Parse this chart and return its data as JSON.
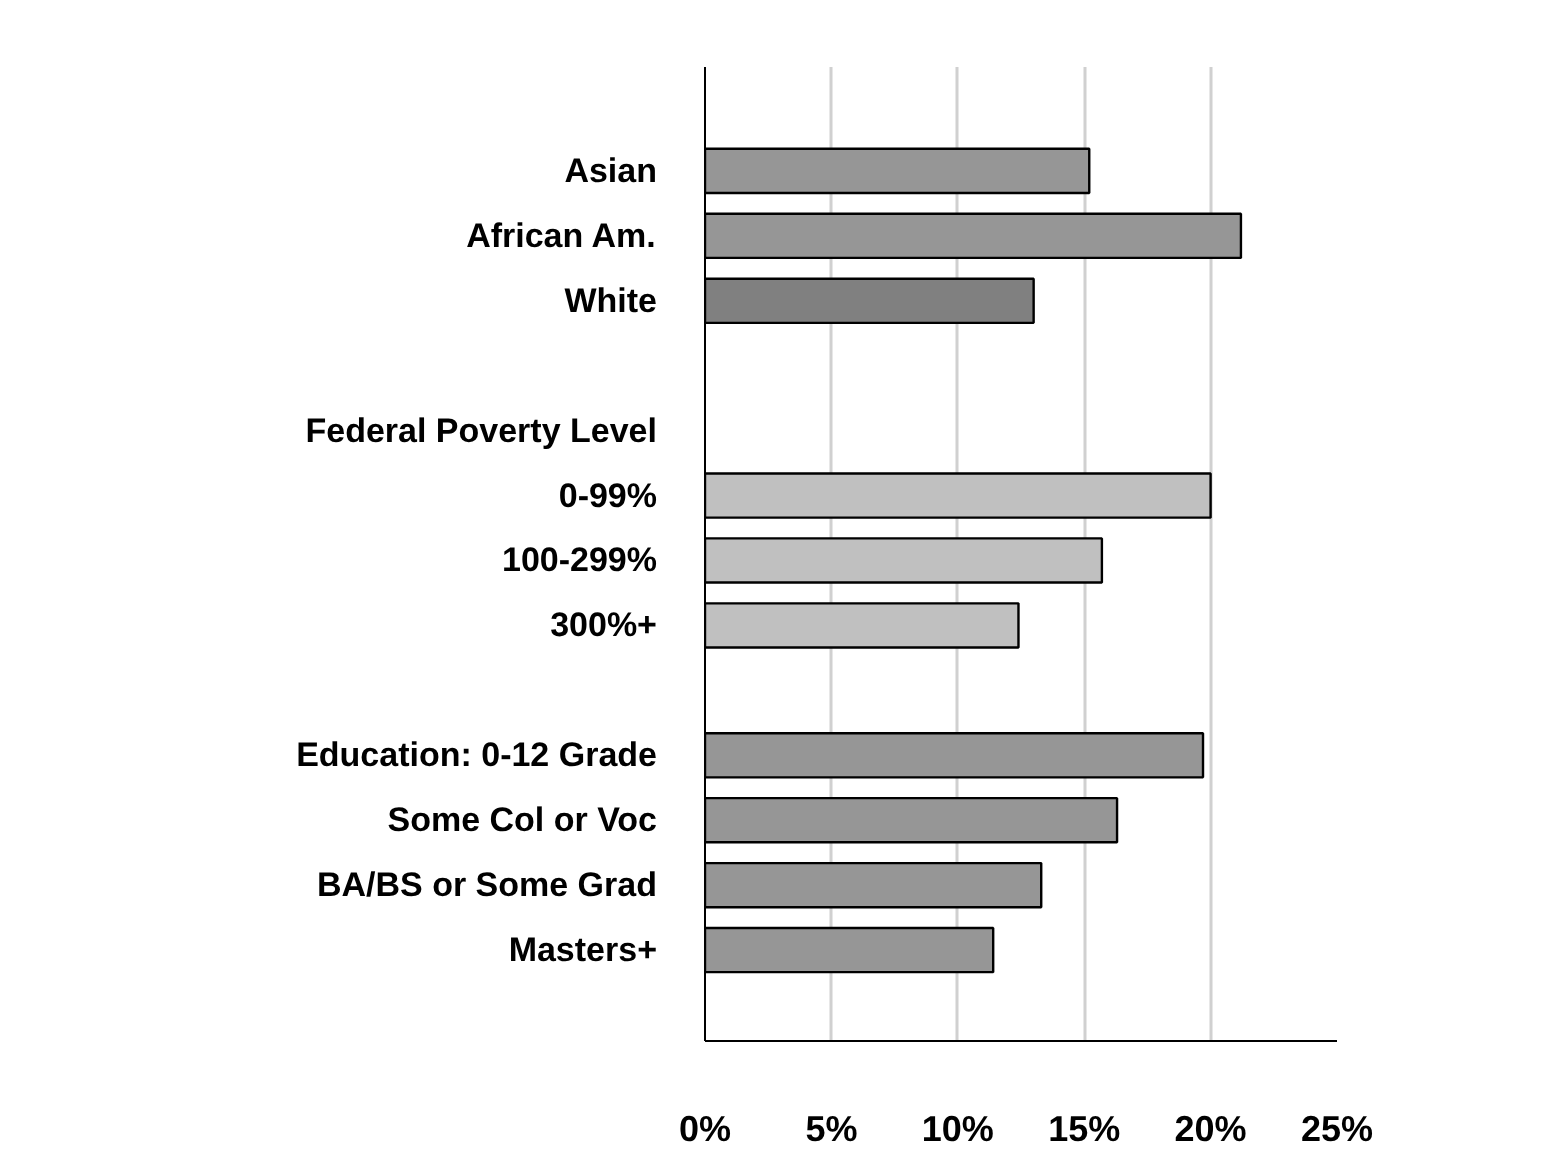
{
  "chart_data": {
    "type": "bar",
    "orientation": "horizontal",
    "categories": [
      "Asian",
      "African Am.",
      "White",
      null,
      "Federal Poverty Level",
      "0-99%",
      "100-299%",
      "300%+",
      null,
      "Education: 0-12 Grade",
      "Some Col or Voc",
      "BA/BS or Some Grad",
      "Masters+"
    ],
    "values": [
      15.2,
      21.2,
      13.0,
      null,
      null,
      20.0,
      15.7,
      12.4,
      null,
      19.7,
      16.3,
      13.3,
      11.4
    ],
    "colors": [
      "#969696",
      "#969696",
      "#808080",
      null,
      null,
      "#c0c0c0",
      "#c0c0c0",
      "#c0c0c0",
      null,
      "#969696",
      "#969696",
      "#969696",
      "#969696"
    ],
    "xlim": [
      0,
      25
    ],
    "xticks": [
      {
        "value": 0,
        "label": "0%"
      },
      {
        "value": 5,
        "label": "5%"
      },
      {
        "value": 10,
        "label": "10%"
      },
      {
        "value": 15,
        "label": "15%"
      },
      {
        "value": 20,
        "label": "20%"
      },
      {
        "value": 25,
        "label": "25%"
      }
    ],
    "grid": "x"
  }
}
